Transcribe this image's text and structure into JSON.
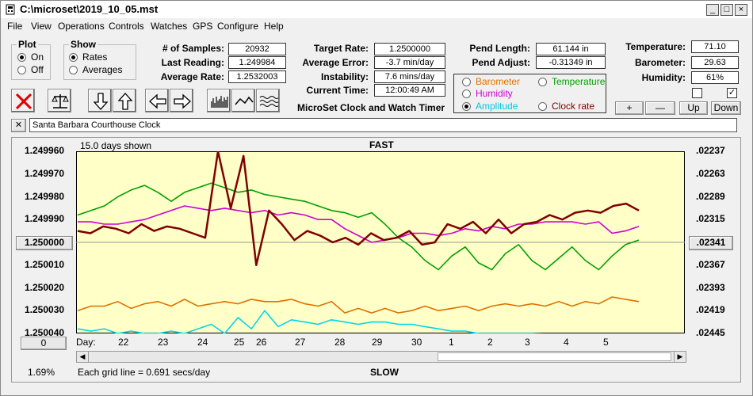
{
  "window": {
    "title": "C:\\microset\\2019_10_05.mst"
  },
  "menu": [
    "File",
    "View",
    "Operations",
    "Controls",
    "Watches",
    "GPS",
    "Configure",
    "Help"
  ],
  "plot_group": {
    "title": "Plot",
    "options": [
      {
        "label": "On",
        "selected": true
      },
      {
        "label": "Off",
        "selected": false
      }
    ]
  },
  "show_group": {
    "title": "Show",
    "options": [
      {
        "label": "Rates",
        "selected": true
      },
      {
        "label": "Averages",
        "selected": false
      }
    ]
  },
  "stats": {
    "samples": {
      "label": "# of Samples:",
      "value": "20932"
    },
    "last_reading": {
      "label": "Last Reading:",
      "value": "1.249984"
    },
    "average_rate": {
      "label": "Average Rate:",
      "value": "1.2532003"
    },
    "target_rate": {
      "label": "Target Rate:",
      "value": "1.2500000"
    },
    "average_error": {
      "label": "Average Error:",
      "value": "-3.7 min/day"
    },
    "instability": {
      "label": "Instability:",
      "value": "7.6 mins/day"
    },
    "current_time": {
      "label": "Current Time:",
      "value": "12:00:49 AM"
    },
    "pend_length": {
      "label": "Pend Length:",
      "value": "61.144 in"
    },
    "pend_adjust": {
      "label": "Pend Adjust:",
      "value": "-0.31349 in"
    },
    "temperature": {
      "label": "Temperature:",
      "value": "71.10"
    },
    "barometer": {
      "label": "Barometer:",
      "value": "29.63"
    },
    "humidity": {
      "label": "Humidity:",
      "value": "61%"
    }
  },
  "subtitle": "MicroSet Clock and Watch Timer",
  "series_options": [
    {
      "label": "Barometer",
      "color": "#e07000",
      "selected": false
    },
    {
      "label": "Temperature",
      "color": "#00a000",
      "selected": false
    },
    {
      "label": "Humidity",
      "color": "#d000d0",
      "selected": false
    },
    {
      "label": "Amplitude",
      "color": "#00c8e0",
      "selected": true
    },
    {
      "label": "Clock rate",
      "color": "#800000",
      "selected": false
    }
  ],
  "adjust_buttons": {
    "plus": "+",
    "minus": "—",
    "up": "Up",
    "down": "Down"
  },
  "watch_name": "Santa Barbara Courthouse Clock",
  "close_mark": "✕",
  "chart": {
    "days_shown": "15.0 days shown",
    "fast_label": "FAST",
    "slow_label": "SLOW",
    "grid_note": "Each grid line = 0.691 secs/day",
    "percent": "1.69%",
    "day_label": "Day:",
    "center_button": "1.250000",
    "right_button": ".02341",
    "zero_button": "0"
  },
  "chart_data": {
    "type": "line",
    "y_left_ticks": [
      "1.249960",
      "1.249970",
      "1.249980",
      "1.249990",
      "1.250000",
      "1.250010",
      "1.250020",
      "1.250030",
      "1.250040"
    ],
    "y_right_ticks": [
      ".02237",
      ".02263",
      ".02289",
      ".02315",
      ".02341",
      ".02367",
      ".02393",
      ".02419",
      ".02445"
    ],
    "x_ticks": [
      "22",
      "23",
      "24",
      "25",
      "26",
      "27",
      "28",
      "29",
      "30",
      "1",
      "2",
      "3",
      "4",
      "5"
    ],
    "ylim": [
      1.24996,
      1.25004
    ],
    "series": [
      {
        "color": "#00a000",
        "y": [
          1.249988,
          1.249986,
          1.249984,
          1.24998,
          1.249977,
          1.249975,
          1.249978,
          1.249982,
          1.249978,
          1.249976,
          1.249974,
          1.249976,
          1.249978,
          1.249977,
          1.249979,
          1.24998,
          1.249981,
          1.249982,
          1.249984,
          1.249986,
          1.249987,
          1.249989,
          1.249987,
          1.249992,
          1.249998,
          1.250002,
          1.250008,
          1.250012,
          1.250006,
          1.250002,
          1.250009,
          1.250012,
          1.250005,
          1.250001,
          1.250008,
          1.250012,
          1.250007,
          1.250002,
          1.250008,
          1.250012,
          1.250006,
          1.250001,
          1.249999
        ]
      },
      {
        "color": "#d000d0",
        "y": [
          1.249991,
          1.249991,
          1.249992,
          1.249992,
          1.249991,
          1.24999,
          1.249988,
          1.249986,
          1.249984,
          1.249985,
          1.249986,
          1.249985,
          1.249986,
          1.249987,
          1.249986,
          1.249988,
          1.249987,
          1.249988,
          1.24999,
          1.24999,
          1.249994,
          1.249997,
          1.25,
          1.249999,
          1.249998,
          1.249996,
          1.249996,
          1.249997,
          1.249996,
          1.249994,
          1.249995,
          1.249993,
          1.249994,
          1.249992,
          1.249992,
          1.249991,
          1.249991,
          1.249991,
          1.249992,
          1.249991,
          1.249996,
          1.249995,
          1.249993
        ]
      },
      {
        "color": "#800000",
        "y": [
          1.249995,
          1.249996,
          1.249993,
          1.249994,
          1.249996,
          1.249992,
          1.249995,
          1.249993,
          1.249994,
          1.249996,
          1.249998,
          1.24996,
          1.249985,
          1.249962,
          1.25001,
          1.249986,
          1.249992,
          1.249999,
          1.249995,
          1.249997,
          1.25,
          1.249998,
          1.250001,
          1.249996,
          1.249999,
          1.249998,
          1.249995,
          1.250001,
          1.25,
          1.249992,
          1.249994,
          1.249991,
          1.249996,
          1.24999,
          1.249996,
          1.249992,
          1.249991,
          1.249988,
          1.24999,
          1.249987,
          1.249986,
          1.249987,
          1.249984,
          1.249983,
          1.249986
        ]
      },
      {
        "color": "#e07000",
        "y": [
          1.25003,
          1.250028,
          1.250028,
          1.250026,
          1.250029,
          1.250027,
          1.250026,
          1.250028,
          1.250025,
          1.250028,
          1.250027,
          1.250026,
          1.250027,
          1.250025,
          1.250026,
          1.250026,
          1.250025,
          1.250027,
          1.250028,
          1.250026,
          1.250031,
          1.250029,
          1.250031,
          1.250029,
          1.250031,
          1.25003,
          1.250028,
          1.25003,
          1.250029,
          1.250028,
          1.25003,
          1.250028,
          1.250027,
          1.250028,
          1.250027,
          1.250028,
          1.250026,
          1.250028,
          1.250026,
          1.250027,
          1.250024,
          1.250025,
          1.250026
        ]
      },
      {
        "color": "#00d8e8",
        "y": [
          1.250038,
          1.250039,
          1.250038,
          1.25004,
          1.250039,
          1.25004,
          1.25004,
          1.250039,
          1.25004,
          1.250038,
          1.250036,
          1.25004,
          1.250033,
          1.250038,
          1.25003,
          1.250037,
          1.250034,
          1.250035,
          1.250036,
          1.250034,
          1.250035,
          1.250036,
          1.250035,
          1.250035,
          1.250036,
          1.250036,
          1.250037,
          1.250038,
          1.250039,
          1.250039,
          1.25004,
          1.25004,
          1.25004,
          1.25004,
          1.25004,
          1.250041,
          1.250041,
          1.250041,
          1.250041,
          1.250041,
          1.250041,
          1.250041,
          1.250041
        ]
      }
    ]
  }
}
